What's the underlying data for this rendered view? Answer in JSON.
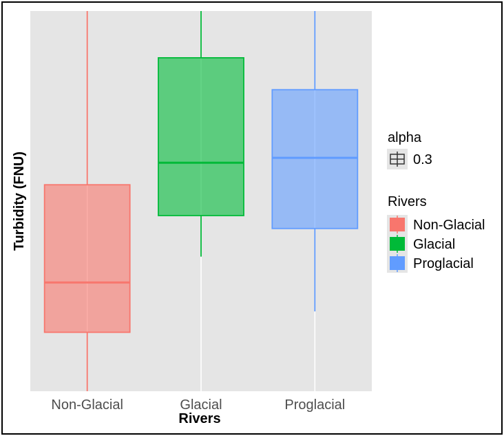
{
  "chart_data": {
    "type": "boxplot",
    "title": "",
    "xlabel": "Rivers",
    "ylabel": "Turbidity (FNU)",
    "categories": [
      "Non-Glacial",
      "Glacial",
      "Proglacial"
    ],
    "y_ticks_shown": false,
    "ylim": [
      0,
      100
    ],
    "grid": true,
    "boxes": [
      {
        "category": "Non-Glacial",
        "min": 0,
        "q1": 15.5,
        "median": 28.6,
        "q3": 54.3,
        "max": 100,
        "color": "#F8766D"
      },
      {
        "category": "Glacial",
        "min": 35.4,
        "q1": 46.2,
        "median": 60.1,
        "q3": 87.7,
        "max": 100,
        "color": "#00BA38"
      },
      {
        "category": "Proglacial",
        "min": 21.0,
        "q1": 42.8,
        "median": 61.4,
        "q3": 79.3,
        "max": 100,
        "color": "#619CFF"
      }
    ],
    "legend": {
      "placement": "right",
      "alpha_title": "alpha",
      "alpha_value": "0.3",
      "fill_title": "Rivers",
      "entries": [
        "Non-Glacial",
        "Glacial",
        "Proglacial"
      ]
    }
  }
}
